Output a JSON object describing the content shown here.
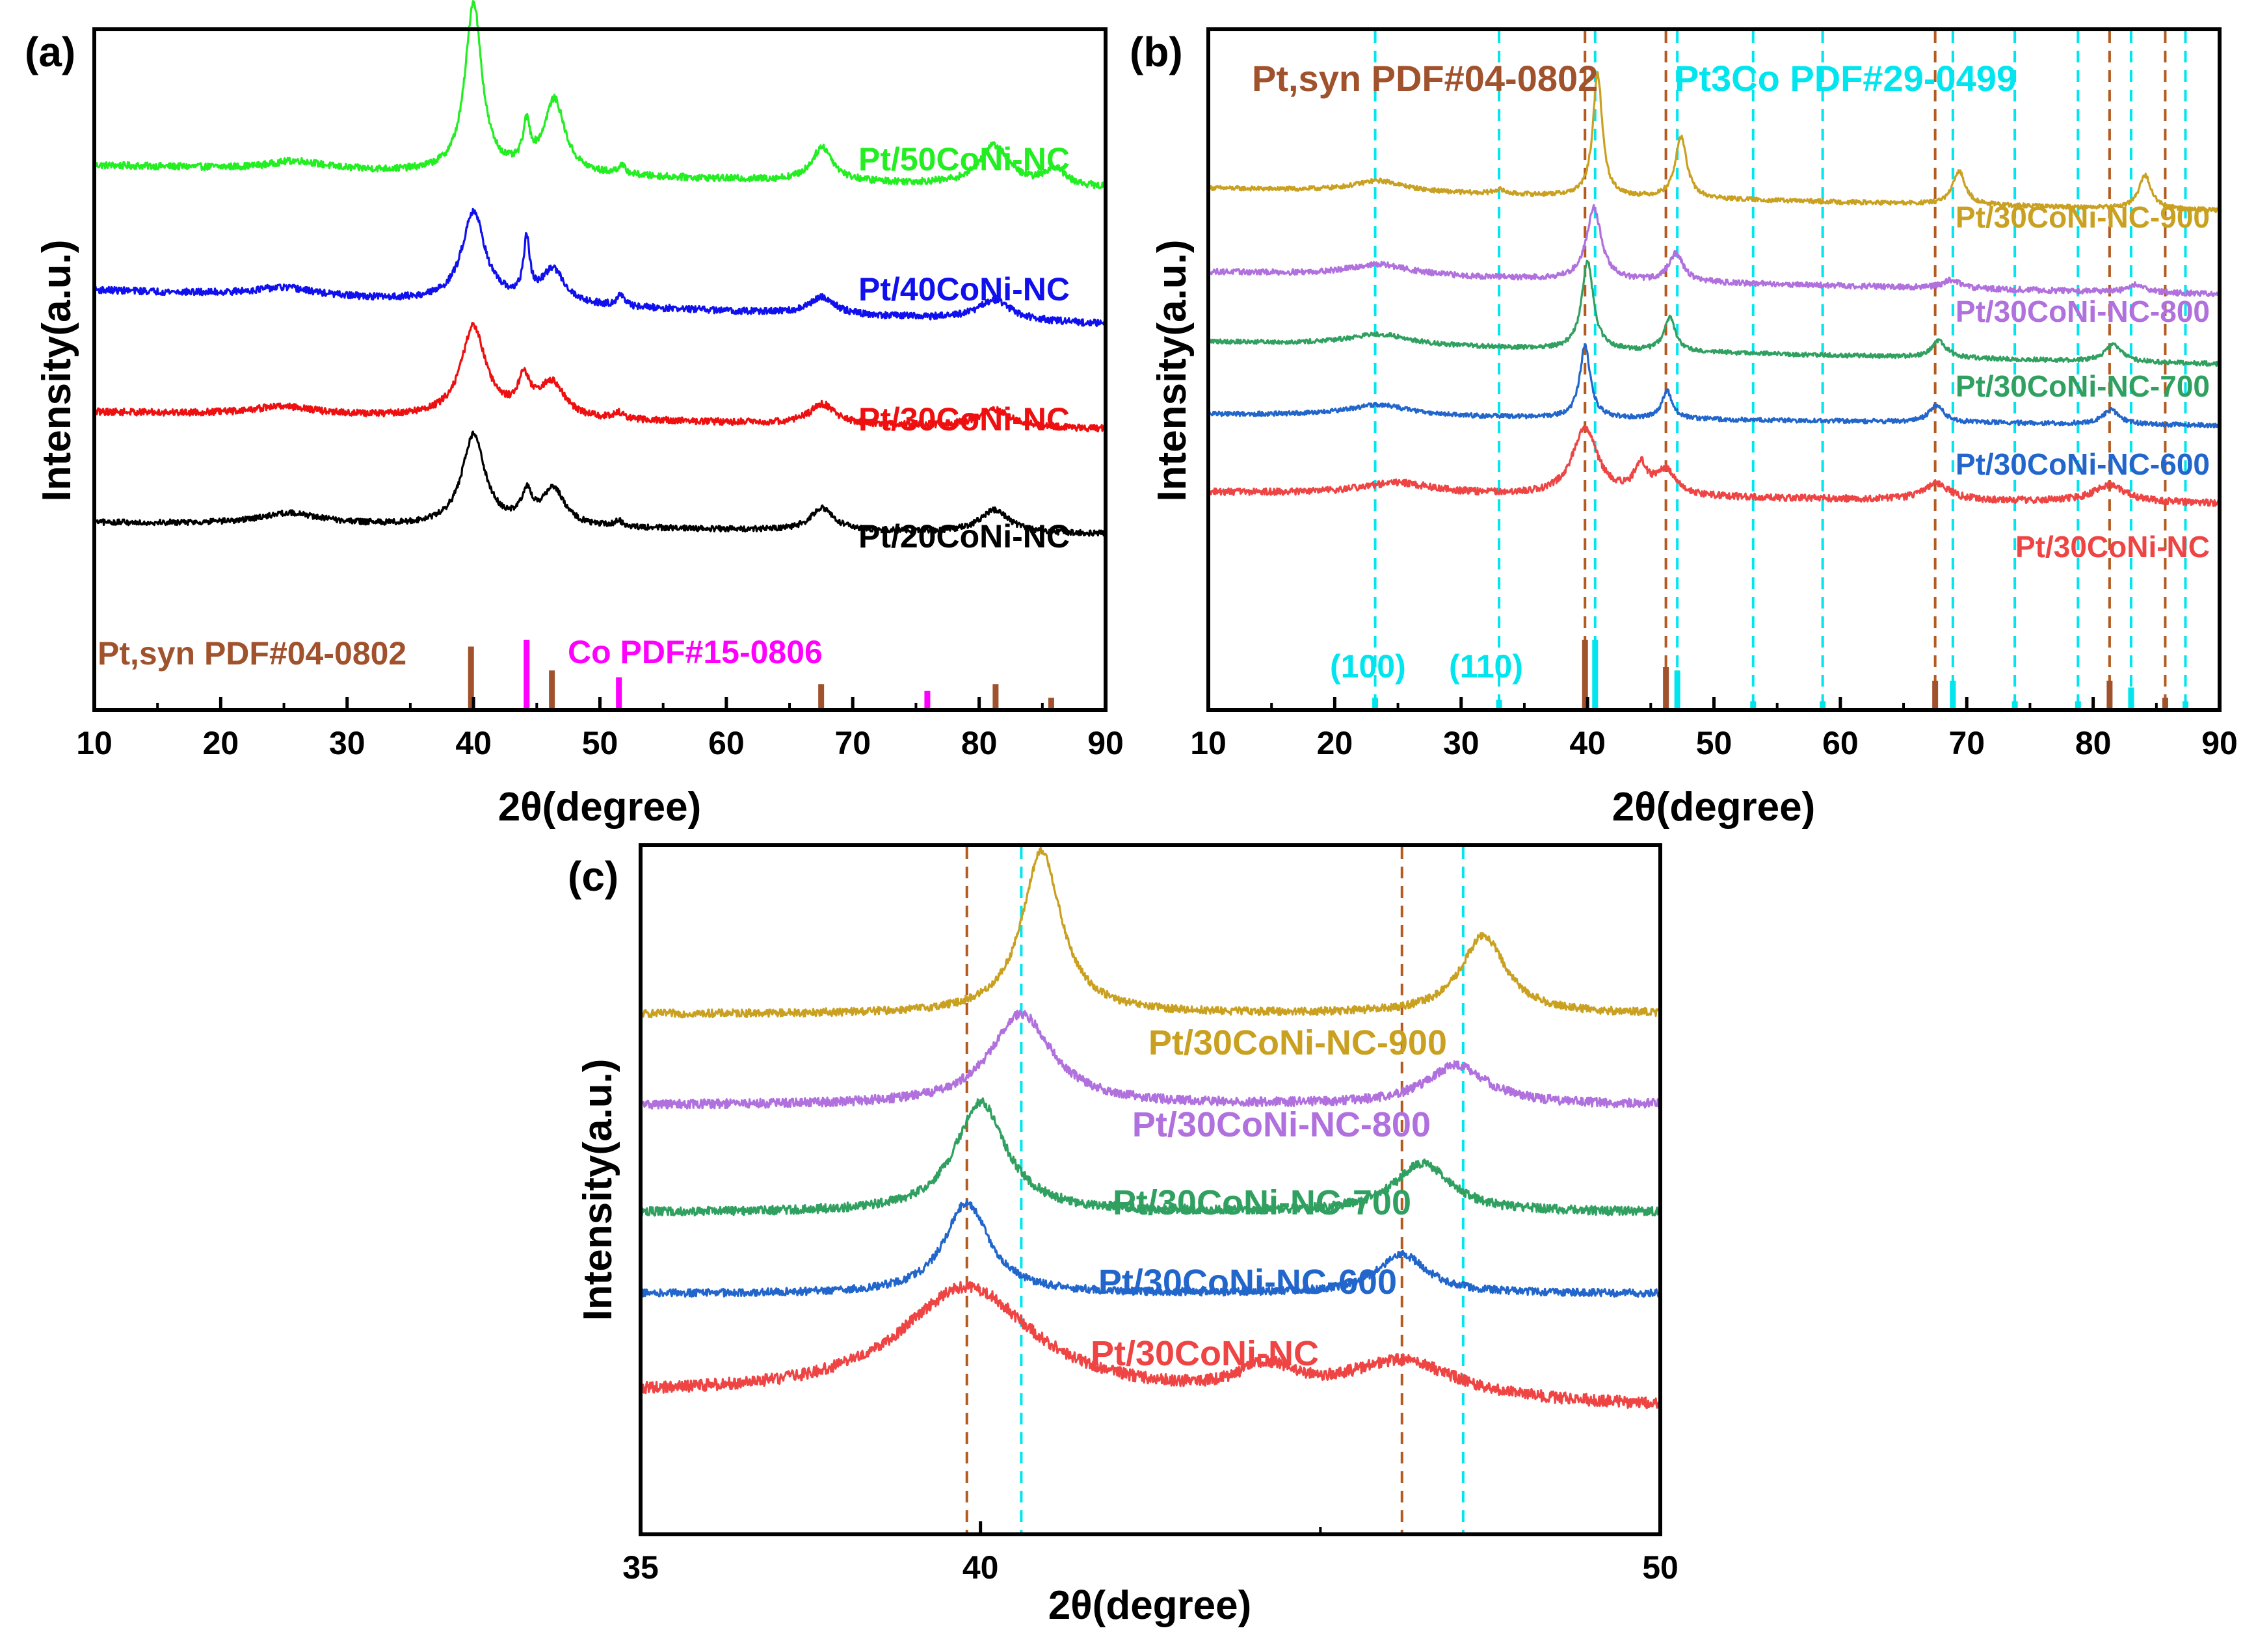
{
  "colors": {
    "pt_ref": "#A0522D",
    "pt_ref_line": "#B35A1F",
    "co_ref": "#FF00FF",
    "pt3co_ref": "#00E5EE",
    "green50": "#22EE22",
    "blue40": "#1010EE",
    "red30": "#EE1010",
    "black20": "#000000",
    "s900": "#C9A020",
    "s800": "#B070DD",
    "s700": "#30A060",
    "s600": "#2266CC",
    "sNC": "#EE4444"
  },
  "chart_data": [
    {
      "panel_label": "(a)",
      "type": "line",
      "xlabel": "2θ(degree)",
      "ylabel": "Intensity(a.u.)",
      "xlim": [
        10,
        90
      ],
      "xticks": [
        "10",
        "20",
        "30",
        "40",
        "50",
        "60",
        "70",
        "80",
        "90"
      ],
      "series": [
        {
          "name": "Pt/50CoNi-NC",
          "color": "#22EE22",
          "baseline": 0.78,
          "slope": -0.004,
          "noise": 0.006,
          "peaks": [
            [
              26,
              0.015,
              2.5
            ],
            [
              40,
              0.3,
              0.8
            ],
            [
              44.2,
              0.07,
              0.35
            ],
            [
              46.4,
              0.13,
              1.0
            ],
            [
              51.7,
              0.015,
              0.4
            ],
            [
              67.6,
              0.06,
              1.0
            ],
            [
              81.2,
              0.07,
              1.4
            ],
            [
              86.0,
              0.03,
              1.0
            ]
          ]
        },
        {
          "name": "Pt/40CoNi-NC",
          "color": "#1010EE",
          "baseline": 0.56,
          "slope": -0.006,
          "noise": 0.006,
          "peaks": [
            [
              25,
              0.015,
              3
            ],
            [
              40,
              0.16,
              1.1
            ],
            [
              44.2,
              0.1,
              0.3
            ],
            [
              46.3,
              0.06,
              1.1
            ],
            [
              51.6,
              0.02,
              0.35
            ],
            [
              67.6,
              0.03,
              1.2
            ],
            [
              81.2,
              0.035,
              1.6
            ]
          ]
        },
        {
          "name": "Pt/30CoNi-NC",
          "color": "#EE1010",
          "baseline": 0.345,
          "slope": -0.003,
          "noise": 0.006,
          "peaks": [
            [
              25,
              0.015,
              3
            ],
            [
              40,
              0.16,
              1.2
            ],
            [
              44.0,
              0.06,
              0.6
            ],
            [
              46.2,
              0.06,
              1.2
            ],
            [
              51.5,
              0.01,
              0.4
            ],
            [
              67.6,
              0.035,
              1.2
            ],
            [
              81.2,
              0.03,
              1.6
            ]
          ]
        },
        {
          "name": "Pt/20CoNi-NC",
          "color": "#000000",
          "baseline": 0.15,
          "slope": -0.002,
          "noise": 0.005,
          "peaks": [
            [
              25.5,
              0.02,
              3
            ],
            [
              40,
              0.16,
              1.1
            ],
            [
              44.2,
              0.05,
              0.5
            ],
            [
              46.3,
              0.065,
              1.1
            ],
            [
              51.5,
              0.01,
              0.4
            ],
            [
              67.6,
              0.04,
              1.1
            ],
            [
              81.2,
              0.04,
              1.4
            ]
          ]
        }
      ],
      "reference_sticks": [
        {
          "name": "Pt,syn PDF#04-0802",
          "color": "#A0522D",
          "positions": [
            39.8,
            46.2,
            67.5,
            81.3,
            85.7
          ],
          "heights": [
            0.9,
            0.55,
            0.35,
            0.35,
            0.15
          ]
        },
        {
          "name": "Co PDF#15-0806",
          "color": "#FF00FF",
          "positions": [
            44.2,
            51.5,
            75.9
          ],
          "heights": [
            1.0,
            0.45,
            0.25
          ]
        }
      ],
      "reference_labels": [
        "Pt,syn PDF#04-0802",
        "Co PDF#15-0806"
      ]
    },
    {
      "panel_label": "(b)",
      "type": "line",
      "xlabel": "2θ(degree)",
      "ylabel": "Intensity(a.u.)",
      "xlim": [
        10,
        90
      ],
      "xticks": [
        "10",
        "20",
        "30",
        "40",
        "50",
        "60",
        "70",
        "80",
        "90"
      ],
      "series": [
        {
          "name": "Pt/30CoNi-NC-900",
          "color": "#C9A020",
          "baseline": 0.735,
          "slope": -0.004,
          "noise": 0.004,
          "peaks": [
            [
              23.5,
              0.02,
              2.5
            ],
            [
              33,
              0.008,
              0.5
            ],
            [
              40.8,
              0.22,
              0.45
            ],
            [
              47.4,
              0.11,
              0.55
            ],
            [
              69.4,
              0.06,
              0.6
            ],
            [
              84.1,
              0.06,
              0.6
            ]
          ]
        },
        {
          "name": "Pt/30CoNi-NC-800",
          "color": "#B070DD",
          "baseline": 0.585,
          "slope": -0.004,
          "noise": 0.005,
          "peaks": [
            [
              23.5,
              0.02,
              3
            ],
            [
              40.5,
              0.13,
              0.7
            ],
            [
              47.0,
              0.05,
              0.7
            ],
            [
              68.8,
              0.015,
              0.8
            ],
            [
              83.5,
              0.015,
              0.8
            ]
          ]
        },
        {
          "name": "Pt/30CoNi-NC-700",
          "color": "#30A060",
          "baseline": 0.46,
          "slope": -0.004,
          "noise": 0.004,
          "peaks": [
            [
              23.5,
              0.02,
              3
            ],
            [
              40.0,
              0.16,
              0.55
            ],
            [
              46.5,
              0.06,
              0.55
            ],
            [
              67.8,
              0.03,
              0.7
            ],
            [
              81.6,
              0.03,
              0.8
            ]
          ]
        },
        {
          "name": "Pt/30CoNi-NC-600",
          "color": "#2266CC",
          "baseline": 0.33,
          "slope": -0.002,
          "noise": 0.004,
          "peaks": [
            [
              23.5,
              0.02,
              3
            ],
            [
              39.8,
              0.13,
              0.5
            ],
            [
              46.3,
              0.05,
              0.5
            ],
            [
              67.6,
              0.03,
              0.7
            ],
            [
              81.4,
              0.025,
              0.8
            ]
          ]
        },
        {
          "name": "Pt/30CoNi-NC",
          "color": "#EE4444",
          "baseline": 0.19,
          "slope": -0.002,
          "noise": 0.006,
          "peaks": [
            [
              25,
              0.02,
              3.5
            ],
            [
              39.8,
              0.12,
              1.2
            ],
            [
              44.2,
              0.05,
              0.6
            ],
            [
              46.2,
              0.045,
              1.0
            ],
            [
              67.6,
              0.03,
              1.2
            ],
            [
              81.3,
              0.03,
              1.6
            ]
          ]
        }
      ],
      "reference_sticks": [
        {
          "name": "Pt,syn PDF#04-0802",
          "color": "#A0522D",
          "positions": [
            39.8,
            46.2,
            67.5,
            81.3,
            85.7
          ],
          "heights": [
            1.0,
            0.6,
            0.4,
            0.4,
            0.15
          ]
        },
        {
          "name": "Pt3Co PDF#29-0499",
          "color": "#00E5EE",
          "positions": [
            23.2,
            33.0,
            40.6,
            47.1,
            53.1,
            58.6,
            68.9,
            73.8,
            78.8,
            83.0,
            87.3
          ],
          "heights": [
            0.15,
            0.12,
            1.0,
            0.55,
            0.1,
            0.1,
            0.4,
            0.1,
            0.1,
            0.3,
            0.1
          ]
        }
      ],
      "dashed_lines": [
        {
          "color": "#B35A1F",
          "positions": [
            39.8,
            46.2,
            67.5,
            81.3,
            85.7
          ]
        },
        {
          "color": "#00E5EE",
          "positions": [
            23.2,
            33.0,
            40.6,
            47.1,
            53.1,
            58.6,
            68.9,
            73.8,
            78.8,
            83.0,
            87.3
          ]
        }
      ],
      "reference_labels": [
        "Pt,syn PDF#04-0802",
        "Pt3Co PDF#29-0499"
      ],
      "hkl_labels": [
        "(100)",
        "(110)"
      ]
    },
    {
      "panel_label": "(c)",
      "type": "line",
      "xlabel": "2θ(degree)",
      "ylabel": "Intensity(a.u.)",
      "xlim": [
        35,
        50
      ],
      "xticks": [
        "35",
        "40",
        "50"
      ],
      "series": [
        {
          "name": "Pt/30CoNi-NC-900",
          "color": "#C9A020",
          "baseline": 0.72,
          "slope": 0,
          "noise": 0.006,
          "peaks": [
            [
              40.9,
              0.25,
              0.35
            ],
            [
              47.4,
              0.12,
              0.4
            ]
          ]
        },
        {
          "name": "Pt/30CoNi-NC-800",
          "color": "#B070DD",
          "baseline": 0.58,
          "slope": 0,
          "noise": 0.007,
          "peaks": [
            [
              40.6,
              0.14,
              0.55
            ],
            [
              47.0,
              0.06,
              0.55
            ]
          ]
        },
        {
          "name": "Pt/30CoNi-NC-700",
          "color": "#30A060",
          "baseline": 0.415,
          "slope": 0,
          "noise": 0.007,
          "peaks": [
            [
              40.0,
              0.17,
              0.45
            ],
            [
              46.5,
              0.075,
              0.5
            ]
          ]
        },
        {
          "name": "Pt/30CoNi-NC-600",
          "color": "#2266CC",
          "baseline": 0.29,
          "slope": 0,
          "noise": 0.006,
          "peaks": [
            [
              39.8,
              0.14,
              0.4
            ],
            [
              46.2,
              0.06,
              0.45
            ]
          ]
        },
        {
          "name": "Pt/30CoNi-NC",
          "color": "#EE4444",
          "baseline": 0.135,
          "slope": -0.002,
          "noise": 0.009,
          "peaks": [
            [
              39.8,
              0.17,
              1.2
            ],
            [
              44.2,
              0.04,
              0.5
            ],
            [
              46.2,
              0.06,
              1.0
            ]
          ]
        }
      ],
      "dashed_lines": [
        {
          "color": "#B35A1F",
          "positions": [
            39.8,
            46.2
          ]
        },
        {
          "color": "#00E5EE",
          "positions": [
            40.6,
            47.1
          ]
        }
      ]
    }
  ]
}
